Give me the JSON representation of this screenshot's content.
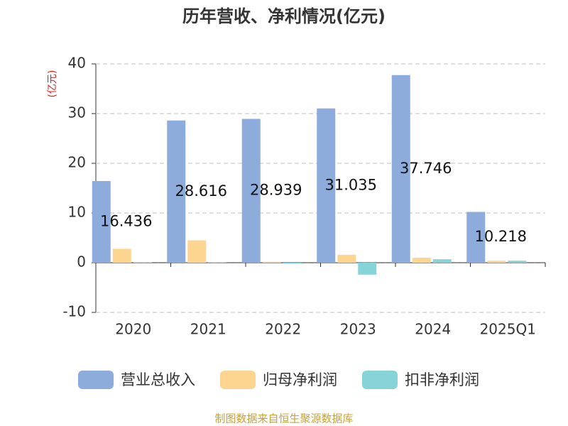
{
  "chart_data": {
    "type": "bar",
    "title": "历年营收、净利情况(亿元)",
    "y_label": "(亿元)",
    "categories": [
      "2020",
      "2021",
      "2022",
      "2023",
      "2024",
      "2025Q1"
    ],
    "series": [
      {
        "name": "营业总收入",
        "color": "#8eacdb",
        "values": [
          16.436,
          28.616,
          28.939,
          31.035,
          37.746,
          10.218
        ],
        "show_labels": true
      },
      {
        "name": "归母净利润",
        "color": "#fdd591",
        "values": [
          2.8,
          4.5,
          0.2,
          1.6,
          1.0,
          0.4
        ]
      },
      {
        "name": "扣非净利润",
        "color": "#86d4d8",
        "values": [
          0.1,
          0.1,
          -0.2,
          -2.4,
          0.7,
          0.4
        ]
      }
    ],
    "ylim": [
      -10,
      40
    ],
    "yticks": [
      40,
      30,
      20,
      10,
      0,
      -10
    ],
    "grid": true,
    "source": "制图数据来自恒生聚源数据库"
  }
}
